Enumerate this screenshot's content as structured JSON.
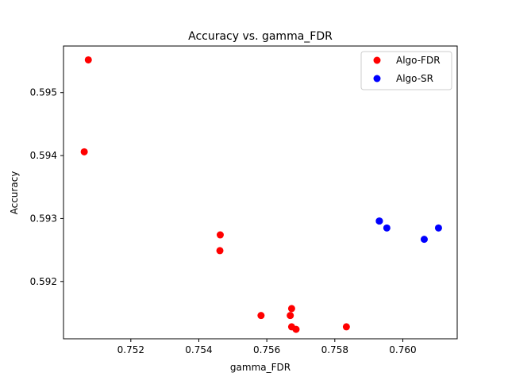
{
  "chart_data": {
    "type": "scatter",
    "title": "Accuracy vs. gamma_FDR",
    "xlabel": "gamma_FDR",
    "ylabel": "Accuracy",
    "xlim": [
      0.75002,
      0.7616
    ],
    "ylim": [
      0.59109,
      0.59574
    ],
    "xticks": [
      0.752,
      0.754,
      0.756,
      0.758,
      0.76
    ],
    "xtick_labels": [
      "0.752",
      "0.754",
      "0.756",
      "0.758",
      "0.760"
    ],
    "yticks": [
      0.592,
      0.593,
      0.594,
      0.595
    ],
    "ytick_labels": [
      "0.592",
      "0.593",
      "0.594",
      "0.595"
    ],
    "grid": false,
    "legend_position": "top-right",
    "series": [
      {
        "name": "Algo-FDR",
        "color": "#ff0000",
        "points": [
          {
            "x": 0.75075,
            "y": 0.59552
          },
          {
            "x": 0.75063,
            "y": 0.59406
          },
          {
            "x": 0.75463,
            "y": 0.59274
          },
          {
            "x": 0.75462,
            "y": 0.59249
          },
          {
            "x": 0.75583,
            "y": 0.59146
          },
          {
            "x": 0.75673,
            "y": 0.59157
          },
          {
            "x": 0.75669,
            "y": 0.59146
          },
          {
            "x": 0.75673,
            "y": 0.59128
          },
          {
            "x": 0.75686,
            "y": 0.59124
          },
          {
            "x": 0.75834,
            "y": 0.59128
          }
        ]
      },
      {
        "name": "Algo-SR",
        "color": "#0000ff",
        "points": [
          {
            "x": 0.75931,
            "y": 0.59296
          },
          {
            "x": 0.75931,
            "y": 0.59296
          },
          {
            "x": 0.75953,
            "y": 0.59285
          },
          {
            "x": 0.76063,
            "y": 0.59267
          },
          {
            "x": 0.76105,
            "y": 0.59285
          }
        ]
      }
    ]
  }
}
